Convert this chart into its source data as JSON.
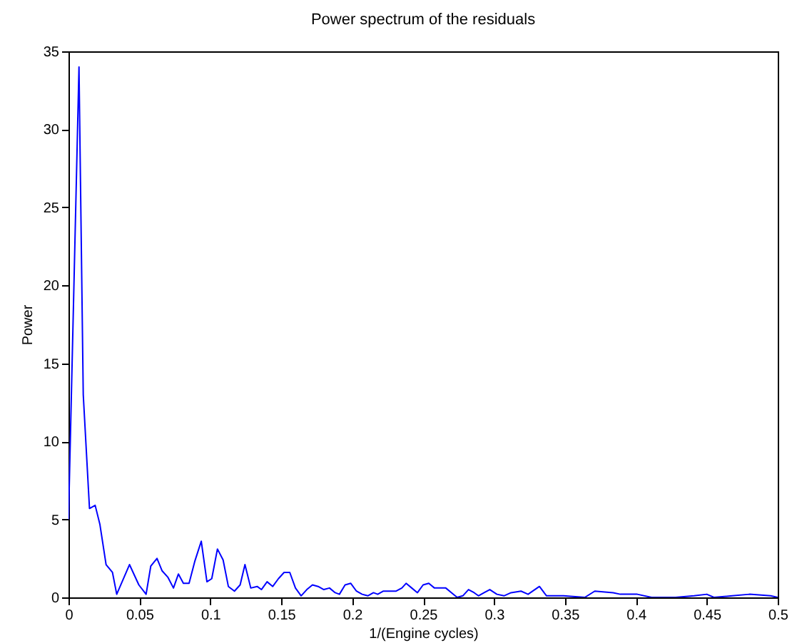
{
  "chart_data": {
    "type": "line",
    "title": "Power spectrum of the residuals",
    "xlabel": "1/(Engine cycles)",
    "ylabel": "Power",
    "x": [
      0,
      0.0074,
      0.0104,
      0.0148,
      0.0188,
      0.0221,
      0.0265,
      0.031,
      0.034,
      0.043,
      0.0496,
      0.0547,
      0.058,
      0.0624,
      0.066,
      0.07,
      0.074,
      0.0775,
      0.081,
      0.085,
      0.089,
      0.0936,
      0.0976,
      0.101,
      0.105,
      0.109,
      0.1127,
      0.117,
      0.121,
      0.1244,
      0.1285,
      0.133,
      0.136,
      0.14,
      0.144,
      0.148,
      0.152,
      0.156,
      0.16,
      0.164,
      0.168,
      0.172,
      0.176,
      0.18,
      0.184,
      0.188,
      0.191,
      0.195,
      0.199,
      0.203,
      0.207,
      0.211,
      0.215,
      0.218,
      0.222,
      0.231,
      0.235,
      0.238,
      0.242,
      0.246,
      0.25,
      0.254,
      0.258,
      0.262,
      0.266,
      0.27,
      0.274,
      0.278,
      0.282,
      0.286,
      0.289,
      0.293,
      0.297,
      0.302,
      0.307,
      0.312,
      0.319,
      0.324,
      0.332,
      0.337,
      0.349,
      0.364,
      0.371,
      0.384,
      0.389,
      0.401,
      0.411,
      0.428,
      0.441,
      0.45,
      0.455,
      0.468,
      0.48,
      0.495,
      0.5
    ],
    "series": [
      {
        "color": "#0000ff",
        "values": [
          5,
          34,
          13,
          5.7,
          5.9,
          4.7,
          2.1,
          1.6,
          0.2,
          2.1,
          0.8,
          0.2,
          2,
          2.5,
          1.7,
          1.3,
          0.6,
          1.5,
          0.9,
          0.9,
          2.3,
          3.6,
          1,
          1.2,
          3.1,
          2.4,
          0.7,
          0.4,
          0.8,
          2.1,
          0.6,
          0.7,
          0.5,
          1,
          0.7,
          1.2,
          1.6,
          1.6,
          0.6,
          0.1,
          0.5,
          0.8,
          0.7,
          0.5,
          0.6,
          0.3,
          0.2,
          0.8,
          0.9,
          0.4,
          0.2,
          0.1,
          0.3,
          0.2,
          0.4,
          0.4,
          0.6,
          0.9,
          0.6,
          0.3,
          0.8,
          0.9,
          0.6,
          0.6,
          0.6,
          0.3,
          0,
          0.1,
          0.5,
          0.3,
          0.1,
          0.3,
          0.5,
          0.2,
          0.1,
          0.3,
          0.4,
          0.2,
          0.7,
          0.1,
          0.1,
          0,
          0.4,
          0.3,
          0.2,
          0.2,
          0,
          0,
          0.1,
          0.2,
          0,
          0.1,
          0.2,
          0.1,
          0
        ]
      }
    ],
    "xlim": [
      0,
      0.5
    ],
    "xticks": [
      0,
      0.05,
      0.1,
      0.15,
      0.2,
      0.25,
      0.3,
      0.35,
      0.4,
      0.45,
      0.5
    ],
    "ylim": [
      0,
      35
    ],
    "yticks": [
      0,
      5,
      10,
      15,
      20,
      25,
      30,
      35
    ],
    "grid": false
  }
}
